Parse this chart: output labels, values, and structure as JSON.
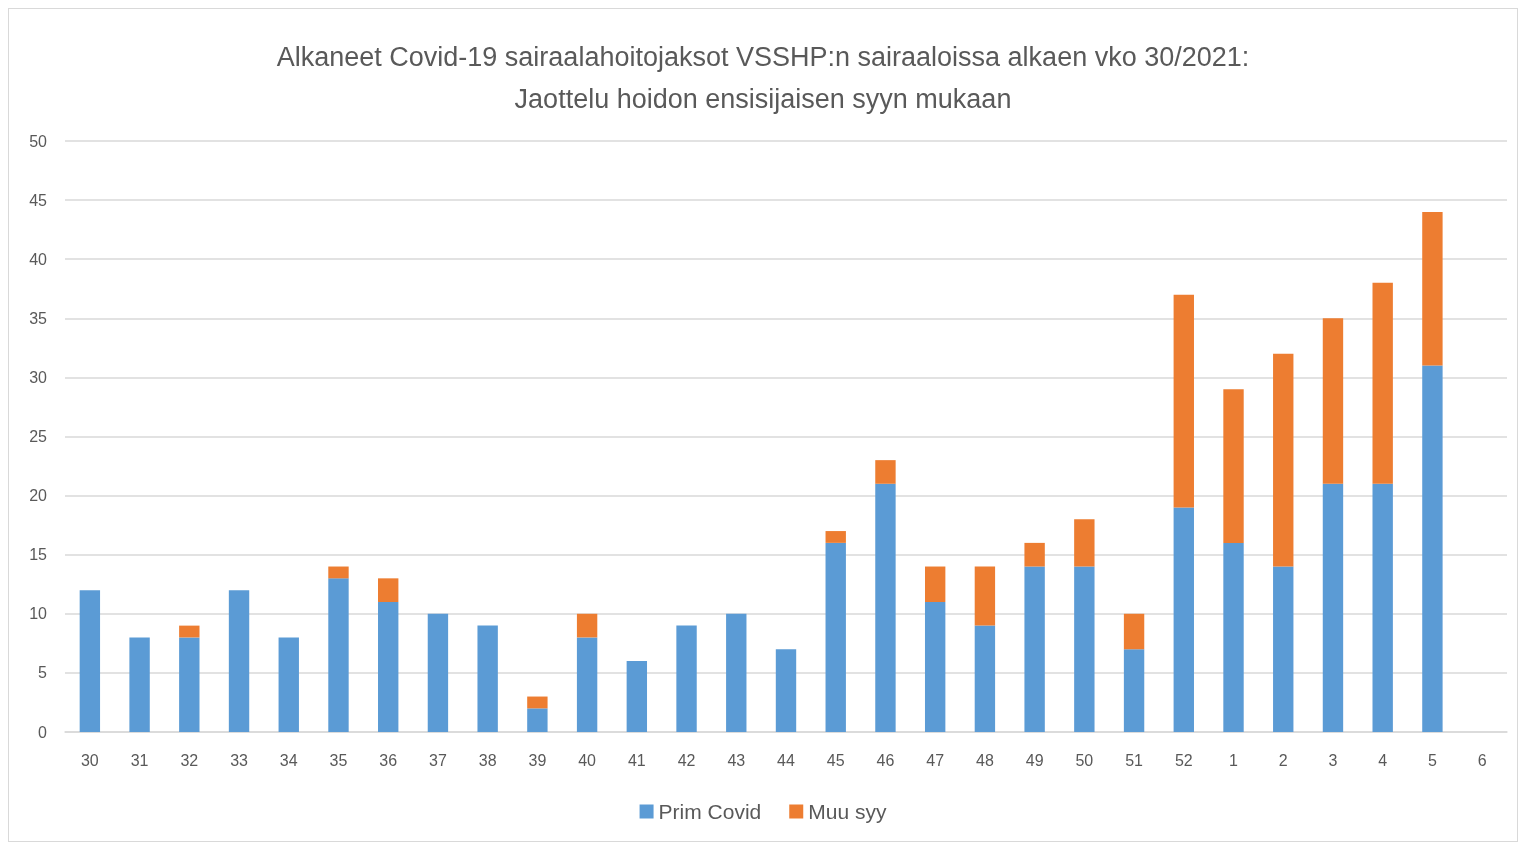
{
  "chart_data": {
    "type": "bar",
    "title": "Alkaneet Covid-19 sairaalahoitojaksot VSSHP:n sairaaloissa alkaen vko 30/2021:\nJaottelu hoidon ensisijaisen syyn mukaan",
    "categories": [
      "30",
      "31",
      "32",
      "33",
      "34",
      "35",
      "36",
      "37",
      "38",
      "39",
      "40",
      "41",
      "42",
      "43",
      "44",
      "45",
      "46",
      "47",
      "48",
      "49",
      "50",
      "51",
      "52",
      "1",
      "2",
      "3",
      "4",
      "5",
      "6"
    ],
    "series": [
      {
        "name": "Prim Covid",
        "color": "#5b9bd5",
        "values": [
          12,
          8,
          8,
          12,
          8,
          13,
          11,
          10,
          9,
          2,
          8,
          6,
          9,
          10,
          7,
          16,
          21,
          11,
          9,
          14,
          14,
          7,
          19,
          16,
          14,
          21,
          21,
          31,
          null
        ]
      },
      {
        "name": "Muu syy",
        "color": "#ed7d31",
        "values": [
          0,
          0,
          1,
          0,
          0,
          1,
          2,
          0,
          0,
          1,
          2,
          0,
          0,
          0,
          0,
          1,
          2,
          3,
          5,
          2,
          4,
          3,
          18,
          13,
          18,
          14,
          17,
          13,
          null
        ]
      }
    ],
    "stacked": true,
    "ylim": [
      0,
      50
    ],
    "yticks": [
      0,
      5,
      10,
      15,
      20,
      25,
      30,
      35,
      40,
      45,
      50
    ],
    "grid": "y",
    "legend": "bottom"
  }
}
